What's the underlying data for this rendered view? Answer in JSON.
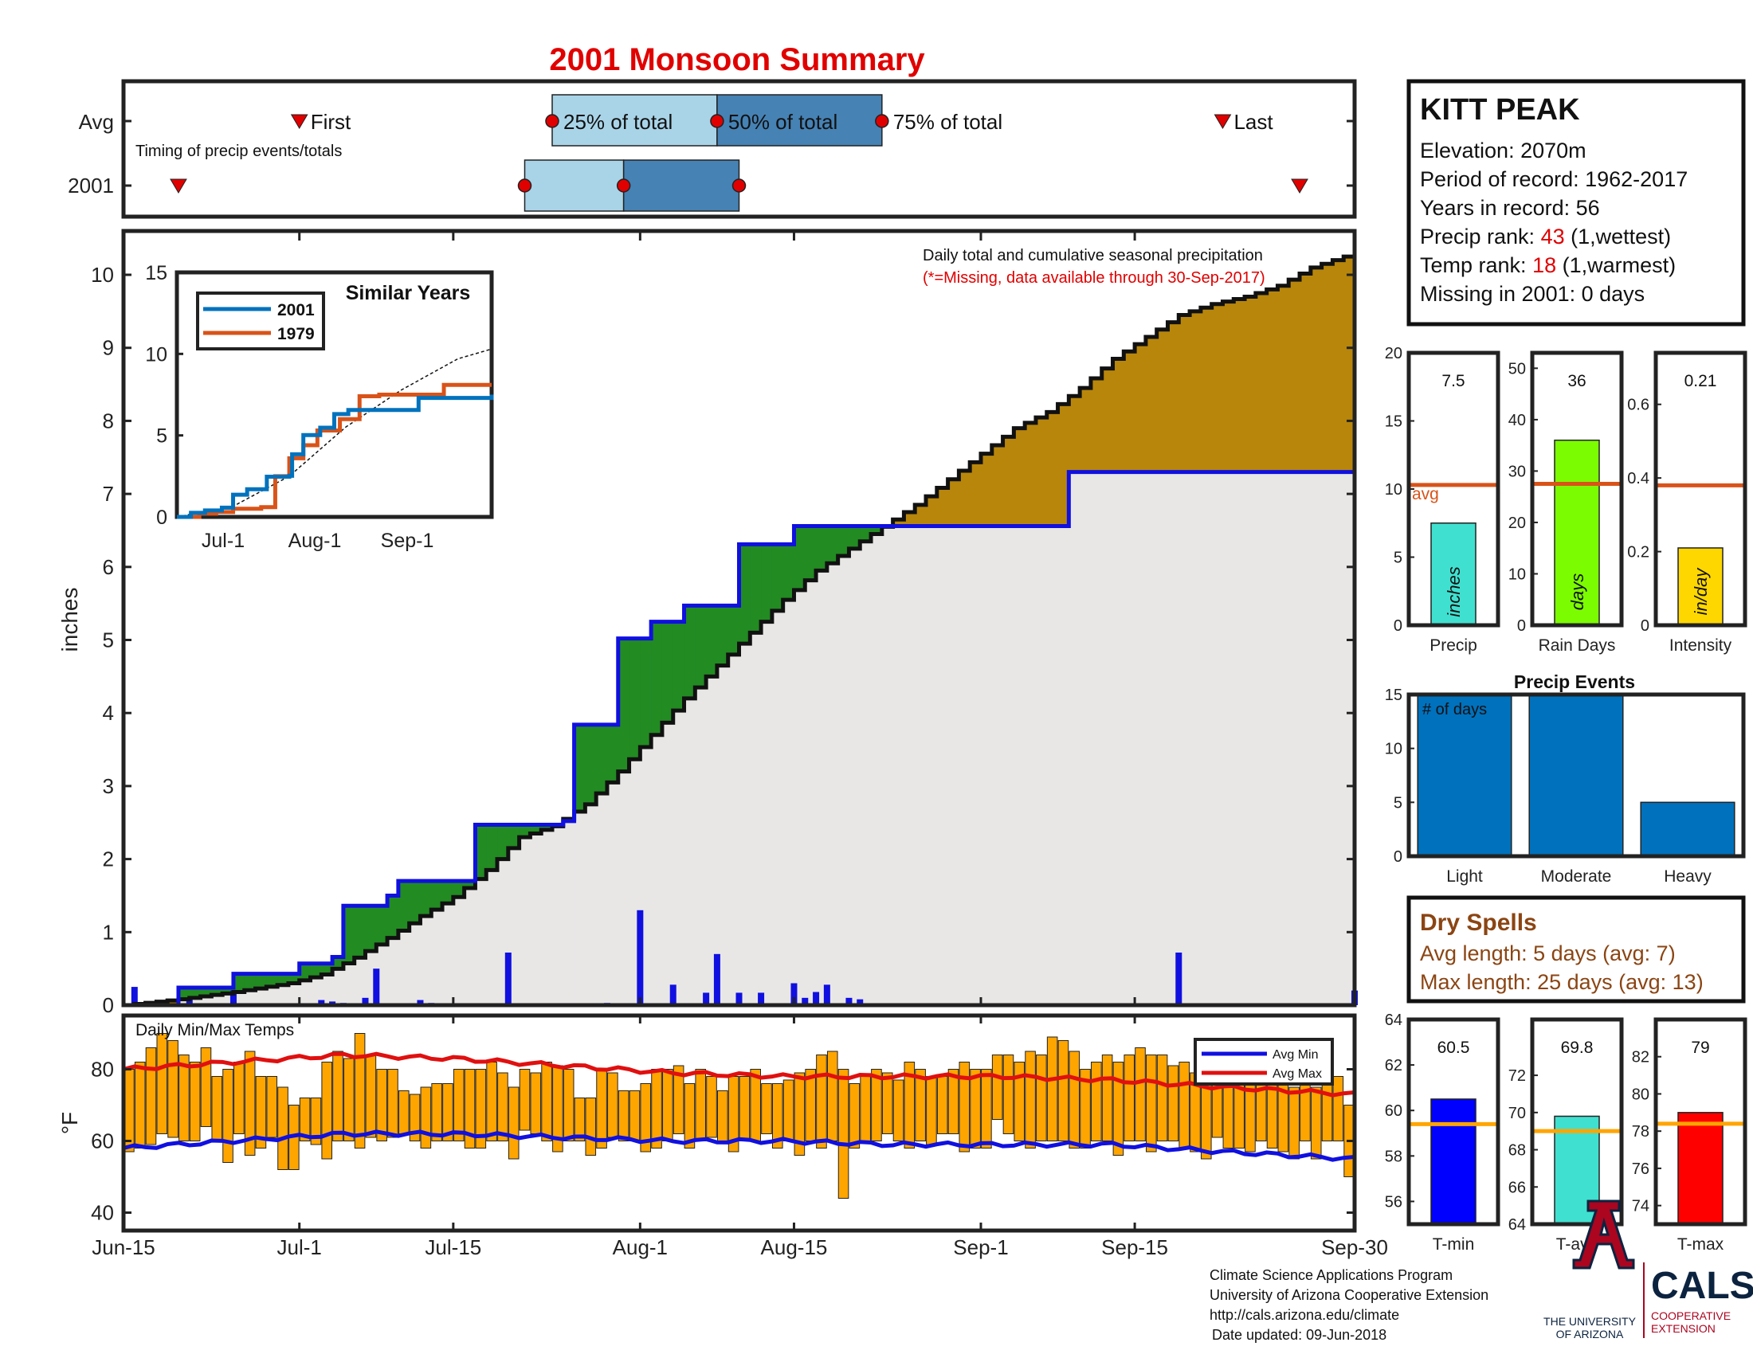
{
  "title": "2001 Monsoon Summary",
  "timing": {
    "row_labels": [
      "Avg",
      "2001"
    ],
    "note": "Timing of precip events/totals",
    "avg_labels": {
      "first": "First",
      "p25": "25% of total",
      "p50": "50% of total",
      "p75": "75% of total",
      "last": "Last"
    },
    "avg_days": {
      "first": 16,
      "p25": 39,
      "p50": 54,
      "p75": 69,
      "last": 100
    },
    "yr_days": {
      "first": 5,
      "p25": 36.5,
      "p50": 45.5,
      "p75": 56,
      "last": 107
    }
  },
  "station": {
    "name": "KITT PEAK",
    "elevation": "Elevation: 2070m",
    "period": "Period of record: 1962-2017",
    "years": "Years in record: 56",
    "precip_rank_label": "Precip rank: ",
    "precip_rank_value": "43",
    "precip_rank_suffix": " (1,wettest)",
    "temp_rank_label": "Temp rank: ",
    "temp_rank_value": "18",
    "temp_rank_suffix": " (1,warmest)",
    "missing": "Missing in 2001: 0 days"
  },
  "main_texts": {
    "note1": "Daily total and cumulative seasonal precipitation",
    "note2": "(*=Missing, data available through 30-Sep-2017)",
    "ylabel": "inches"
  },
  "date_ticks": [
    "Jun-15",
    "Jul-1",
    "Jul-15",
    "Aug-1",
    "Aug-15",
    "Sep-1",
    "Sep-15",
    "Sep-30"
  ],
  "temp_texts": {
    "title": "Daily Min/Max Temps",
    "ylabel": "°F",
    "legend_min": "Avg Min",
    "legend_max": "Avg Max"
  },
  "colors": {
    "title": "#e00000",
    "rank": "#e00000",
    "cum_2001": "#1010e0",
    "above_fill": "#b8860b",
    "below_fill": "#228b22",
    "under_fill": "#e8e7e6",
    "avg_min": "#1010e0",
    "avg_max": "#e01010",
    "temp_bars": "#ffa500",
    "box_light": "#a9d4e8",
    "box_dark": "#4682b4",
    "dryspell": "#8b4513",
    "ua_blue": "#0c2340",
    "ua_red": "#ab0520"
  },
  "chart_data": [
    {
      "type": "area",
      "title": "Daily total and cumulative seasonal precipitation",
      "ylabel": "inches",
      "ylim": [
        0,
        10.6
      ],
      "x_range": [
        "Jun-15",
        "Sep-30"
      ],
      "series": [
        {
          "name": "Average cumulative",
          "points": [
            [
              0,
              0
            ],
            [
              5,
              0.08
            ],
            [
              10,
              0.18
            ],
            [
              15,
              0.3
            ],
            [
              18,
              0.42
            ],
            [
              21,
              0.65
            ],
            [
              24,
              0.92
            ],
            [
              27,
              1.22
            ],
            [
              30,
              1.48
            ],
            [
              33,
              1.85
            ],
            [
              36,
              2.3
            ],
            [
              39,
              2.45
            ],
            [
              42,
              2.75
            ],
            [
              45,
              3.2
            ],
            [
              48,
              3.7
            ],
            [
              51,
              4.2
            ],
            [
              54,
              4.65
            ],
            [
              57,
              5.1
            ],
            [
              60,
              5.55
            ],
            [
              63,
              5.95
            ],
            [
              66,
              6.25
            ],
            [
              69,
              6.55
            ],
            [
              72,
              6.85
            ],
            [
              75,
              7.2
            ],
            [
              78,
              7.55
            ],
            [
              81,
              7.9
            ],
            [
              84,
              8.12
            ],
            [
              87,
              8.45
            ],
            [
              90,
              8.85
            ],
            [
              93,
              9.15
            ],
            [
              96,
              9.45
            ],
            [
              99,
              9.6
            ],
            [
              102,
              9.7
            ],
            [
              105,
              9.85
            ],
            [
              108,
              10.1
            ],
            [
              111,
              10.25
            ],
            [
              112,
              10.3
            ]
          ]
        },
        {
          "name": "2001 cumulative",
          "points": [
            [
              0,
              0
            ],
            [
              5,
              0.24
            ],
            [
              10,
              0.43
            ],
            [
              16,
              0.57
            ],
            [
              19,
              0.66
            ],
            [
              20,
              1.36
            ],
            [
              24,
              1.5
            ],
            [
              25,
              1.7
            ],
            [
              32,
              2.47
            ],
            [
              40,
              2.52
            ],
            [
              41,
              3.84
            ],
            [
              45,
              5.02
            ],
            [
              48,
              5.25
            ],
            [
              51,
              5.47
            ],
            [
              56,
              6.31
            ],
            [
              61,
              6.56
            ],
            [
              85,
              6.56
            ],
            [
              86,
              7.3
            ],
            [
              111,
              7.3
            ],
            [
              112,
              7.5
            ]
          ]
        }
      ],
      "daily_precip": [
        [
          1,
          0.25
        ],
        [
          6,
          0.08
        ],
        [
          10,
          0.2
        ],
        [
          18,
          0.07
        ],
        [
          19,
          0.05
        ],
        [
          20,
          0.03
        ],
        [
          22,
          0.1
        ],
        [
          23,
          0.5
        ],
        [
          27,
          0.07
        ],
        [
          28,
          0.03
        ],
        [
          35,
          0.72
        ],
        [
          44,
          0.03
        ],
        [
          47,
          1.3
        ],
        [
          50,
          0.28
        ],
        [
          53,
          0.17
        ],
        [
          54,
          0.7
        ],
        [
          56,
          0.17
        ],
        [
          58,
          0.17
        ],
        [
          61,
          0.3
        ],
        [
          62,
          0.1
        ],
        [
          63,
          0.18
        ],
        [
          64,
          0.28
        ],
        [
          66,
          0.1
        ],
        [
          67,
          0.08
        ],
        [
          96,
          0.72
        ],
        [
          112,
          0.2
        ]
      ]
    },
    {
      "type": "line",
      "title": "Similar Years",
      "ylim": [
        0,
        15
      ],
      "x_ticks": [
        "Jul-1",
        "Aug-1",
        "Sep-1"
      ],
      "series": [
        {
          "name": "2001",
          "points": [
            [
              0,
              0
            ],
            [
              5,
              0.25
            ],
            [
              10,
              0.4
            ],
            [
              16,
              0.57
            ],
            [
              20,
              1.36
            ],
            [
              25,
              1.7
            ],
            [
              32,
              2.47
            ],
            [
              40,
              2.52
            ],
            [
              41,
              3.84
            ],
            [
              45,
              5.02
            ],
            [
              51,
              5.47
            ],
            [
              56,
              6.31
            ],
            [
              61,
              6.56
            ],
            [
              86,
              6.56
            ],
            [
              86,
              7.3
            ],
            [
              111,
              7.3
            ],
            [
              112,
              7.5
            ]
          ]
        },
        {
          "name": "1979",
          "points": [
            [
              0,
              0
            ],
            [
              8,
              0.2
            ],
            [
              14,
              0.3
            ],
            [
              20,
              0.5
            ],
            [
              30,
              0.6
            ],
            [
              35,
              2.5
            ],
            [
              40,
              3.6
            ],
            [
              45,
              4.4
            ],
            [
              50,
              5.3
            ],
            [
              58,
              6.0
            ],
            [
              65,
              7.4
            ],
            [
              72,
              7.5
            ],
            [
              80,
              7.5
            ],
            [
              90,
              7.5
            ],
            [
              95,
              8.1
            ],
            [
              112,
              8.1
            ]
          ]
        },
        {
          "name": "Average",
          "points": [
            [
              0,
              0
            ],
            [
              20,
              0.65
            ],
            [
              40,
              2.5
            ],
            [
              60,
              5.5
            ],
            [
              80,
              7.8
            ],
            [
              100,
              9.7
            ],
            [
              112,
              10.3
            ]
          ]
        }
      ]
    },
    {
      "type": "bar",
      "title": "Precip",
      "ylim": [
        0,
        20
      ],
      "categories": [
        "Precip"
      ],
      "values": [
        7.5
      ],
      "avg": 10.3,
      "bar_label": "inches",
      "avg_label": "avg",
      "value_label": "7.5",
      "xlabel": "Precip",
      "color": "#40e0d0"
    },
    {
      "type": "bar",
      "title": "Rain Days",
      "ylim": [
        0,
        53
      ],
      "categories": [
        "Rain Days"
      ],
      "values": [
        36
      ],
      "avg": 27.5,
      "bar_label": "days",
      "value_label": "36",
      "xlabel": "Rain Days",
      "color": "#7cfc00"
    },
    {
      "type": "bar",
      "title": "Intensity",
      "ylim": [
        0,
        0.74
      ],
      "categories": [
        "Intensity"
      ],
      "values": [
        0.21
      ],
      "avg": 0.38,
      "bar_label": "in/day",
      "value_label": "0.21",
      "xlabel": "Intensity",
      "color": "#ffd700"
    },
    {
      "type": "bar",
      "title": "Precip Events",
      "annotation": "# of days",
      "ylim": [
        0,
        15
      ],
      "categories": [
        "Light",
        "Moderate",
        "Heavy"
      ],
      "values": [
        15,
        15,
        5
      ],
      "color": "#0071bc"
    },
    {
      "type": "bar",
      "title": "Daily Min/Max Temps",
      "ylabel": "°F",
      "ylim": [
        35,
        95
      ],
      "x_range": [
        "Jun-15",
        "Sep-30"
      ],
      "avg_min_points": [
        [
          0,
          58
        ],
        [
          10,
          60
        ],
        [
          20,
          62
        ],
        [
          30,
          62
        ],
        [
          40,
          61
        ],
        [
          50,
          60
        ],
        [
          60,
          60
        ],
        [
          70,
          59
        ],
        [
          80,
          59
        ],
        [
          90,
          59
        ],
        [
          100,
          57
        ],
        [
          112,
          55
        ]
      ],
      "avg_max_points": [
        [
          0,
          80
        ],
        [
          10,
          82
        ],
        [
          20,
          84
        ],
        [
          30,
          83
        ],
        [
          40,
          81
        ],
        [
          50,
          79
        ],
        [
          60,
          78
        ],
        [
          70,
          78
        ],
        [
          80,
          78
        ],
        [
          90,
          77
        ],
        [
          100,
          75
        ],
        [
          112,
          73
        ]
      ],
      "daily_min": [
        57,
        58,
        59,
        62,
        61,
        60,
        60,
        64,
        60,
        54,
        62,
        56,
        58,
        61,
        52,
        52,
        60,
        59,
        55,
        60,
        60,
        58,
        61,
        60,
        61,
        62,
        60,
        58,
        60,
        60,
        60,
        58,
        58,
        60,
        60,
        55,
        63,
        62,
        60,
        57,
        60,
        60,
        56,
        58,
        61,
        60,
        60,
        57,
        58,
        60,
        62,
        58,
        60,
        61,
        60,
        57,
        60,
        60,
        62,
        58,
        60,
        56,
        60,
        58,
        60,
        44,
        58,
        60,
        60,
        62,
        60,
        58,
        60,
        59,
        62,
        62,
        57,
        58,
        58,
        66,
        62,
        60,
        58,
        60,
        60,
        60,
        58,
        58,
        60,
        60,
        56,
        60,
        60,
        57,
        60,
        60,
        58,
        57,
        55,
        61,
        58,
        58,
        57,
        60,
        58,
        57,
        55,
        60,
        55,
        60,
        60,
        50
      ],
      "daily_max": [
        80,
        82,
        86,
        90,
        88,
        84,
        82,
        86,
        78,
        80,
        82,
        85,
        78,
        78,
        75,
        70,
        72,
        72,
        82,
        85,
        83,
        90,
        84,
        80,
        80,
        74,
        73,
        75,
        76,
        76,
        80,
        80,
        80,
        82,
        79,
        75,
        80,
        79,
        82,
        81,
        80,
        72,
        72,
        80,
        79,
        74,
        74,
        76,
        80,
        80,
        81,
        76,
        80,
        78,
        74,
        78,
        78,
        80,
        76,
        76,
        77,
        79,
        80,
        84,
        85,
        80,
        76,
        78,
        80,
        79,
        77,
        82,
        80,
        78,
        78,
        80,
        82,
        80,
        80,
        84,
        84,
        82,
        85,
        84,
        89,
        88,
        85,
        80,
        82,
        84,
        82,
        84,
        86,
        84,
        84,
        81,
        82,
        79,
        80,
        76,
        80,
        80,
        82,
        80,
        80,
        80,
        75,
        80,
        75,
        78,
        78,
        70
      ]
    },
    {
      "type": "bar",
      "title": "T-min",
      "ylim": [
        55,
        64
      ],
      "categories": [
        "T-min"
      ],
      "values": [
        60.5
      ],
      "avg": 59.4,
      "value_label": "60.5",
      "xlabel": "T-min",
      "color": "#0000ff"
    },
    {
      "type": "bar",
      "title": "T-avg",
      "ylim": [
        64,
        75
      ],
      "categories": [
        "T-avg"
      ],
      "values": [
        69.8
      ],
      "avg": 69,
      "value_label": "69.8",
      "xlabel": "T-avg",
      "color": "#40e0d0"
    },
    {
      "type": "bar",
      "title": "T-max",
      "ylim": [
        73,
        84
      ],
      "categories": [
        "T-max"
      ],
      "values": [
        79
      ],
      "avg": 78.4,
      "value_label": "79",
      "xlabel": "T-max",
      "color": "#ff0000"
    }
  ],
  "dry_spells": {
    "title": "Dry Spells",
    "avg_length": "Avg length: 5 days (avg: 7)",
    "max_length": "Max length: 25 days (avg: 13)"
  },
  "footer": {
    "line1": "Climate Science Applications Program",
    "line2": "University of Arizona Cooperative Extension",
    "line3": "http://cals.arizona.edu/climate",
    "line4": "Date updated: 09-Jun-2018"
  },
  "logos": {
    "ua_text1": "THE UNIVERSITY",
    "ua_text2": "OF ARIZONA",
    "cals": "CALS",
    "coop1": "COOPERATIVE",
    "coop2": "EXTENSION"
  }
}
